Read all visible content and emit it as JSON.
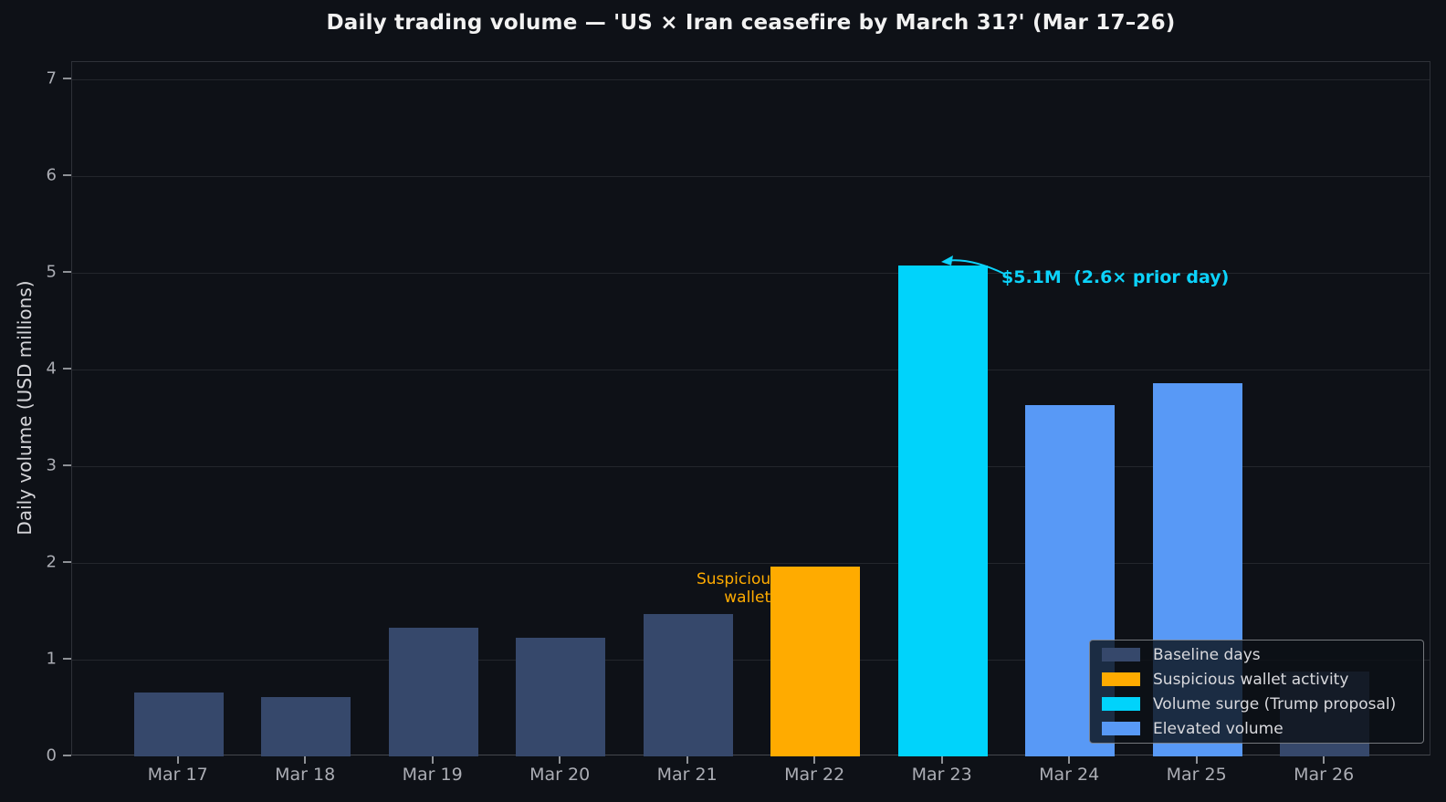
{
  "figure_title": "Daily trading volume — 'US × Iran ceasefire by March 31?' (Mar 17–26)",
  "chart_data": {
    "type": "bar",
    "title": "Daily trading volume — 'US × Iran ceasefire by March 31?' (Mar 17–26)",
    "xlabel": "",
    "ylabel": "Daily volume (USD millions)",
    "categories": [
      "Mar 17",
      "Mar 18",
      "Mar 19",
      "Mar 20",
      "Mar 21",
      "Mar 22",
      "Mar 23",
      "Mar 24",
      "Mar 25",
      "Mar 26"
    ],
    "values": [
      0.66,
      0.61,
      1.33,
      1.23,
      1.47,
      1.96,
      5.08,
      3.63,
      3.86,
      0.88
    ],
    "series_keys": [
      "baseline",
      "baseline",
      "baseline",
      "baseline",
      "baseline",
      "suspicious",
      "surge",
      "elevated",
      "elevated",
      "baseline"
    ],
    "colors": {
      "baseline": "#36486b",
      "suspicious": "#ffab00",
      "surge": "#00d3fb",
      "elevated": "#5899f6"
    },
    "ylim": [
      0,
      7.18
    ],
    "yticks": [
      0,
      1,
      2,
      3,
      4,
      5,
      6,
      7
    ],
    "grid": true,
    "background": "#0e1117",
    "legend": {
      "position": "lower right",
      "entries": [
        {
          "label": "Baseline days",
          "color_key": "baseline"
        },
        {
          "label": "Suspicious wallet activity",
          "color_key": "suspicious"
        },
        {
          "label": "Volume surge (Trump proposal)",
          "color_key": "surge"
        },
        {
          "label": "Elevated volume",
          "color_key": "elevated"
        }
      ]
    },
    "annotations": [
      {
        "id": "surge-callout",
        "text": "$5.1M  (2.6× prior day)",
        "color": "#0cd3fb",
        "target_category": "Mar 23"
      },
      {
        "id": "suspicious-callout",
        "lines": [
          "Suspicious",
          "wallets"
        ],
        "color": "#ffab00",
        "target_category": "Mar 22"
      }
    ]
  }
}
